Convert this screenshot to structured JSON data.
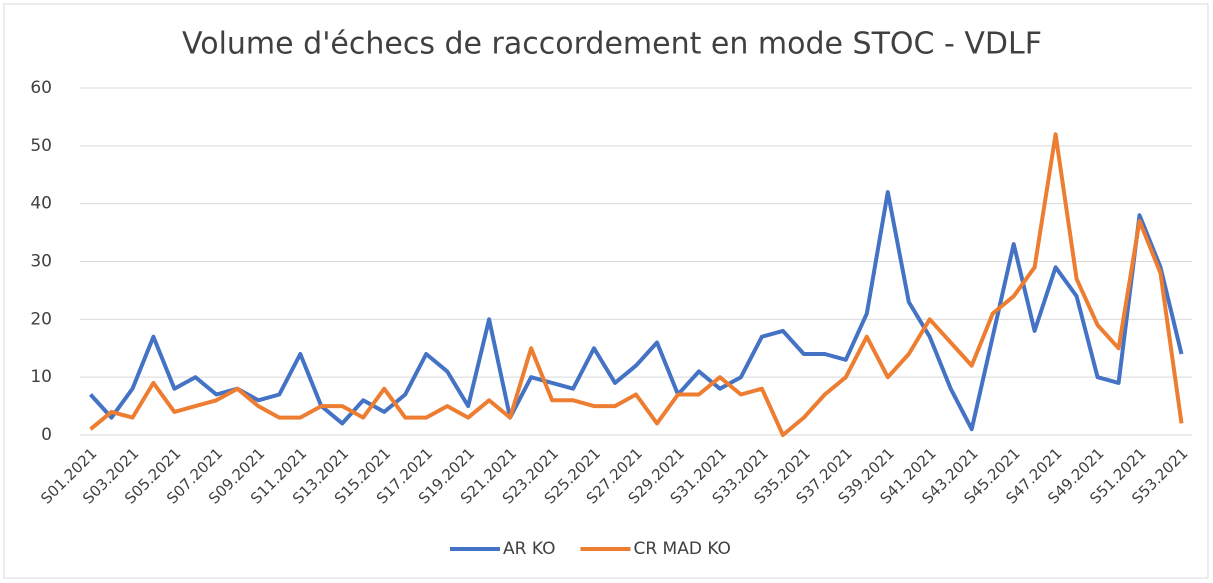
{
  "chart_data": {
    "type": "line",
    "title": "Volume d'échecs de raccordement en mode STOC - VDLF",
    "categories": [
      "S01.2021",
      null,
      "S03.2021",
      null,
      "S05.2021",
      null,
      "S07.2021",
      null,
      "S09.2021",
      null,
      "S11.2021",
      null,
      "S13.2021",
      null,
      "S15.2021",
      null,
      "S17.2021",
      null,
      "S19.2021",
      null,
      "S21.2021",
      null,
      "S23.2021",
      null,
      "S25.2021",
      null,
      "S27.2021",
      null,
      "S29.2021",
      null,
      "S31.2021",
      null,
      "S33.2021",
      null,
      "S35.2021",
      null,
      "S37.2021",
      null,
      "S39.2021",
      null,
      "S41.2021",
      null,
      "S43.2021",
      null,
      "S45.2021",
      null,
      "S47.2021",
      null,
      "S49.2021",
      null,
      "S51.2021",
      null,
      "S53.2021"
    ],
    "series": [
      {
        "name": "AR KO",
        "color": "#4472c4",
        "values": [
          7,
          3,
          8,
          17,
          8,
          10,
          7,
          8,
          6,
          7,
          14,
          5,
          2,
          6,
          4,
          7,
          14,
          11,
          5,
          20,
          3,
          10,
          9,
          8,
          15,
          9,
          12,
          16,
          7,
          11,
          8,
          10,
          17,
          18,
          14,
          14,
          13,
          21,
          42,
          23,
          17,
          8,
          1,
          17,
          33,
          18,
          29,
          24,
          10,
          9,
          38,
          29,
          14
        ]
      },
      {
        "name": "CR MAD KO",
        "color": "#ed7d31",
        "values": [
          1,
          4,
          3,
          9,
          4,
          5,
          6,
          8,
          5,
          3,
          3,
          5,
          5,
          3,
          8,
          3,
          3,
          5,
          3,
          6,
          3,
          15,
          6,
          6,
          5,
          5,
          7,
          2,
          7,
          7,
          10,
          7,
          8,
          0,
          3,
          7,
          10,
          17,
          10,
          14,
          20,
          16,
          12,
          21,
          24,
          29,
          52,
          27,
          19,
          15,
          37,
          28,
          2
        ]
      }
    ],
    "ylim": [
      0,
      60
    ],
    "yticks": [
      0,
      10,
      20,
      30,
      40,
      50,
      60
    ],
    "grid": true,
    "legend": "bottom"
  }
}
